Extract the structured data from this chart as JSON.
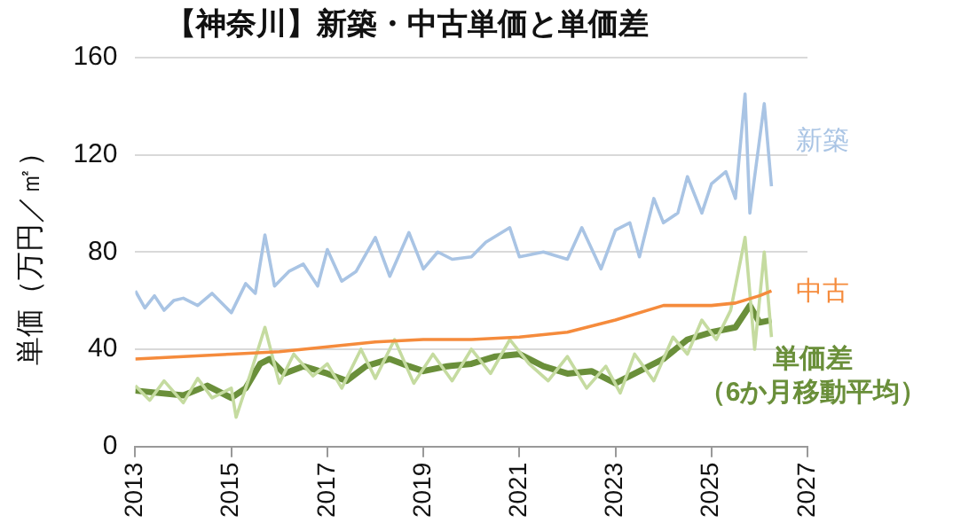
{
  "chart_data": {
    "type": "line",
    "title": "【神奈川】新築・中古単価と単価差",
    "ylabel": "単価（万円／㎡）",
    "xlim": [
      2013,
      2027
    ],
    "xticks": [
      2013,
      2015,
      2017,
      2019,
      2021,
      2023,
      2025,
      2027
    ],
    "ylim": [
      0,
      160
    ],
    "yticks": [
      0,
      40,
      80,
      120,
      160
    ],
    "grid": "y",
    "legend": false,
    "marker": "none",
    "series": [
      {
        "name": "新築",
        "color": "#a9c4e4",
        "x": [
          2013,
          2013.2,
          2013.4,
          2013.6,
          2013.8,
          2014,
          2014.3,
          2014.6,
          2014.9,
          2015,
          2015.3,
          2015.5,
          2015.7,
          2015.9,
          2016.2,
          2016.5,
          2016.8,
          2017,
          2017.3,
          2017.6,
          2018,
          2018.3,
          2018.7,
          2019,
          2019.3,
          2019.6,
          2020,
          2020.3,
          2020.8,
          2021,
          2021.5,
          2022,
          2022.3,
          2022.7,
          2023,
          2023.3,
          2023.5,
          2023.8,
          2024,
          2024.3,
          2024.5,
          2024.8,
          2025,
          2025.3,
          2025.5,
          2025.7,
          2025.8,
          2026.1,
          2026.25
        ],
        "values": [
          64,
          57,
          62,
          56,
          60,
          61,
          58,
          63,
          57,
          55,
          67,
          63,
          87,
          66,
          72,
          75,
          66,
          81,
          68,
          72,
          86,
          70,
          88,
          73,
          80,
          77,
          78,
          84,
          90,
          78,
          80,
          77,
          90,
          73,
          89,
          92,
          78,
          102,
          92,
          96,
          111,
          96,
          108,
          113,
          102,
          145,
          96,
          141,
          107
        ]
      },
      {
        "name": "中古",
        "color": "#f58b3c",
        "x": [
          2013,
          2014,
          2015,
          2016,
          2017,
          2018,
          2019,
          2020,
          2021,
          2022,
          2023,
          2024,
          2025,
          2025.5,
          2026,
          2026.25
        ],
        "values": [
          36,
          37,
          38,
          39,
          41,
          43,
          44,
          44,
          45,
          47,
          52,
          58,
          58,
          59,
          62,
          64
        ]
      },
      {
        "color": "#c5dba0",
        "x": [
          2013,
          2013.3,
          2013.6,
          2014,
          2014.3,
          2014.6,
          2015,
          2015.1,
          2015.4,
          2015.7,
          2016,
          2016.3,
          2016.7,
          2017,
          2017.3,
          2017.7,
          2018,
          2018.4,
          2018.8,
          2019.2,
          2019.6,
          2020,
          2020.4,
          2020.8,
          2021.2,
          2021.6,
          2022,
          2022.4,
          2022.8,
          2023.1,
          2023.4,
          2023.8,
          2024.2,
          2024.5,
          2024.8,
          2025.1,
          2025.4,
          2025.7,
          2025.9,
          2026.1,
          2026.25
        ],
        "values": [
          25,
          19,
          27,
          18,
          28,
          20,
          24,
          12,
          30,
          49,
          26,
          38,
          29,
          34,
          24,
          40,
          28,
          44,
          26,
          38,
          27,
          40,
          30,
          44,
          34,
          27,
          37,
          24,
          33,
          22,
          38,
          27,
          45,
          38,
          52,
          44,
          56,
          86,
          40,
          80,
          45
        ]
      },
      {
        "name": "単価差（6か月移動平均）",
        "color": "#6a8f3a",
        "x": [
          2013,
          2013.5,
          2014,
          2014.5,
          2015,
          2015.3,
          2015.6,
          2015.8,
          2016.1,
          2016.5,
          2017,
          2017.4,
          2017.8,
          2018.3,
          2018.7,
          2019,
          2019.5,
          2020,
          2020.5,
          2021,
          2021.5,
          2022,
          2022.5,
          2023,
          2023.5,
          2024,
          2024.5,
          2025,
          2025.5,
          2025.8,
          2026,
          2026.25
        ],
        "values": [
          23,
          22,
          21,
          25,
          20,
          24,
          34,
          36,
          30,
          33,
          30,
          27,
          33,
          36,
          33,
          31,
          33,
          34,
          37,
          38,
          33,
          30,
          31,
          26,
          31,
          36,
          44,
          47,
          49,
          58,
          51,
          52
        ]
      }
    ]
  }
}
